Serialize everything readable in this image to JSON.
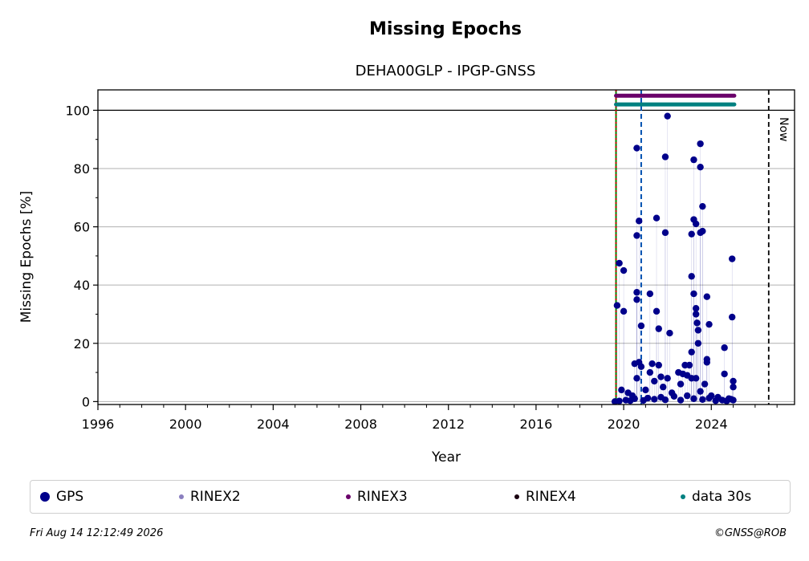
{
  "chart_data": {
    "type": "scatter",
    "title": "Missing Epochs",
    "subtitle": "DEHA00GLP - IPGP-GNSS",
    "xlabel": "Year",
    "ylabel": "Missing Epochs [%]",
    "xlim": [
      1996,
      2027.8
    ],
    "ylim": [
      -1,
      107
    ],
    "xticks": [
      "1996",
      "2000",
      "2004",
      "2008",
      "2012",
      "2016",
      "2020",
      "2024"
    ],
    "yticks": [
      "0",
      "20",
      "40",
      "60",
      "80",
      "100"
    ],
    "grid": true,
    "now_label": "Now",
    "now_year": 2026.62,
    "markers": [
      {
        "year": 2019.65,
        "color": "#008000",
        "style": "solid"
      },
      {
        "year": 2019.65,
        "color": "#cc0000",
        "style": "dotted"
      },
      {
        "year": 2020.8,
        "color": "#0050b0",
        "style": "dashed"
      }
    ],
    "series": [
      {
        "name": "GPS",
        "color": "#00008b",
        "points": [
          [
            2019.7,
            33
          ],
          [
            2019.8,
            47.5
          ],
          [
            2020.0,
            45
          ],
          [
            2020.0,
            31
          ],
          [
            2020.6,
            87
          ],
          [
            2020.6,
            57
          ],
          [
            2020.6,
            37.5
          ],
          [
            2020.6,
            35
          ],
          [
            2020.7,
            62
          ],
          [
            2020.8,
            26
          ],
          [
            2021.2,
            37
          ],
          [
            2021.5,
            63
          ],
          [
            2021.5,
            31
          ],
          [
            2021.6,
            25
          ],
          [
            2021.9,
            84
          ],
          [
            2021.9,
            58
          ],
          [
            2022.0,
            98
          ],
          [
            2022.1,
            23.5
          ],
          [
            2023.1,
            57.5
          ],
          [
            2023.1,
            43
          ],
          [
            2023.1,
            17
          ],
          [
            2023.2,
            83
          ],
          [
            2023.2,
            62.5
          ],
          [
            2023.2,
            37
          ],
          [
            2023.3,
            61
          ],
          [
            2023.3,
            32
          ],
          [
            2023.3,
            30
          ],
          [
            2023.35,
            27
          ],
          [
            2023.4,
            24.5
          ],
          [
            2023.4,
            20
          ],
          [
            2023.5,
            88.5
          ],
          [
            2023.5,
            80.5
          ],
          [
            2023.5,
            58
          ],
          [
            2023.6,
            67
          ],
          [
            2023.6,
            58.5
          ],
          [
            2023.8,
            36
          ],
          [
            2023.8,
            14.5
          ],
          [
            2023.8,
            13.5
          ],
          [
            2023.9,
            26.5
          ],
          [
            2024.6,
            18.5
          ],
          [
            2024.6,
            9.5
          ],
          [
            2024.95,
            49
          ],
          [
            2024.95,
            29
          ],
          [
            2025.0,
            7
          ],
          [
            2025.0,
            5
          ],
          [
            2019.9,
            4
          ],
          [
            2020.2,
            3
          ],
          [
            2020.4,
            2
          ],
          [
            2020.5,
            13
          ],
          [
            2020.6,
            8
          ],
          [
            2020.7,
            13.5
          ],
          [
            2020.8,
            12
          ],
          [
            2021.0,
            4
          ],
          [
            2021.2,
            10
          ],
          [
            2021.3,
            13
          ],
          [
            2021.4,
            7
          ],
          [
            2021.6,
            12.5
          ],
          [
            2021.7,
            8.5
          ],
          [
            2021.8,
            5
          ],
          [
            2022.0,
            8
          ],
          [
            2022.2,
            3
          ],
          [
            2022.5,
            10
          ],
          [
            2022.6,
            6
          ],
          [
            2022.7,
            9.5
          ],
          [
            2022.8,
            12.5
          ],
          [
            2022.9,
            9
          ],
          [
            2023.0,
            12.5
          ],
          [
            2023.1,
            8
          ],
          [
            2023.3,
            8
          ],
          [
            2023.5,
            3.5
          ],
          [
            2023.7,
            6
          ],
          [
            2024.0,
            2
          ],
          [
            2024.3,
            1.5
          ],
          [
            2024.8,
            1
          ],
          [
            2025.0,
            0.5
          ],
          [
            2019.6,
            0
          ],
          [
            2019.8,
            0.2
          ],
          [
            2020.1,
            0.5
          ],
          [
            2020.3,
            0.3
          ],
          [
            2020.5,
            1
          ],
          [
            2020.9,
            0.4
          ],
          [
            2021.1,
            1.2
          ],
          [
            2021.4,
            0.8
          ],
          [
            2021.7,
            1.5
          ],
          [
            2021.9,
            0.6
          ],
          [
            2022.3,
            1.8
          ],
          [
            2022.6,
            0.5
          ],
          [
            2022.9,
            2
          ],
          [
            2023.2,
            1
          ],
          [
            2023.6,
            0.7
          ],
          [
            2023.9,
            1.2
          ],
          [
            2024.2,
            0.3
          ],
          [
            2024.5,
            0.5
          ],
          [
            2024.7,
            0.2
          ],
          [
            2024.9,
            0.8
          ]
        ]
      },
      {
        "name": "RINEX2",
        "color": "#8a7fbf",
        "points": []
      },
      {
        "name": "RINEX3",
        "color": "#6a006a",
        "start": 2019.65,
        "end": 2025.05,
        "y": 105
      },
      {
        "name": "RINEX4",
        "color": "#1a0010",
        "points": []
      },
      {
        "name": "data 30s",
        "color": "#008080",
        "start": 2019.65,
        "end": 2025.05,
        "y": 102
      }
    ]
  },
  "legend": {
    "items": [
      {
        "label": "GPS",
        "color": "#00008b"
      },
      {
        "label": "RINEX2",
        "color": "#8a7fbf"
      },
      {
        "label": "RINEX3",
        "color": "#6a006a"
      },
      {
        "label": "RINEX4",
        "color": "#1a0010"
      },
      {
        "label": "data 30s",
        "color": "#008080"
      }
    ]
  },
  "footer": {
    "timestamp": "Fri Aug 14 12:12:49 2026",
    "copyright": "©GNSS@ROB"
  }
}
